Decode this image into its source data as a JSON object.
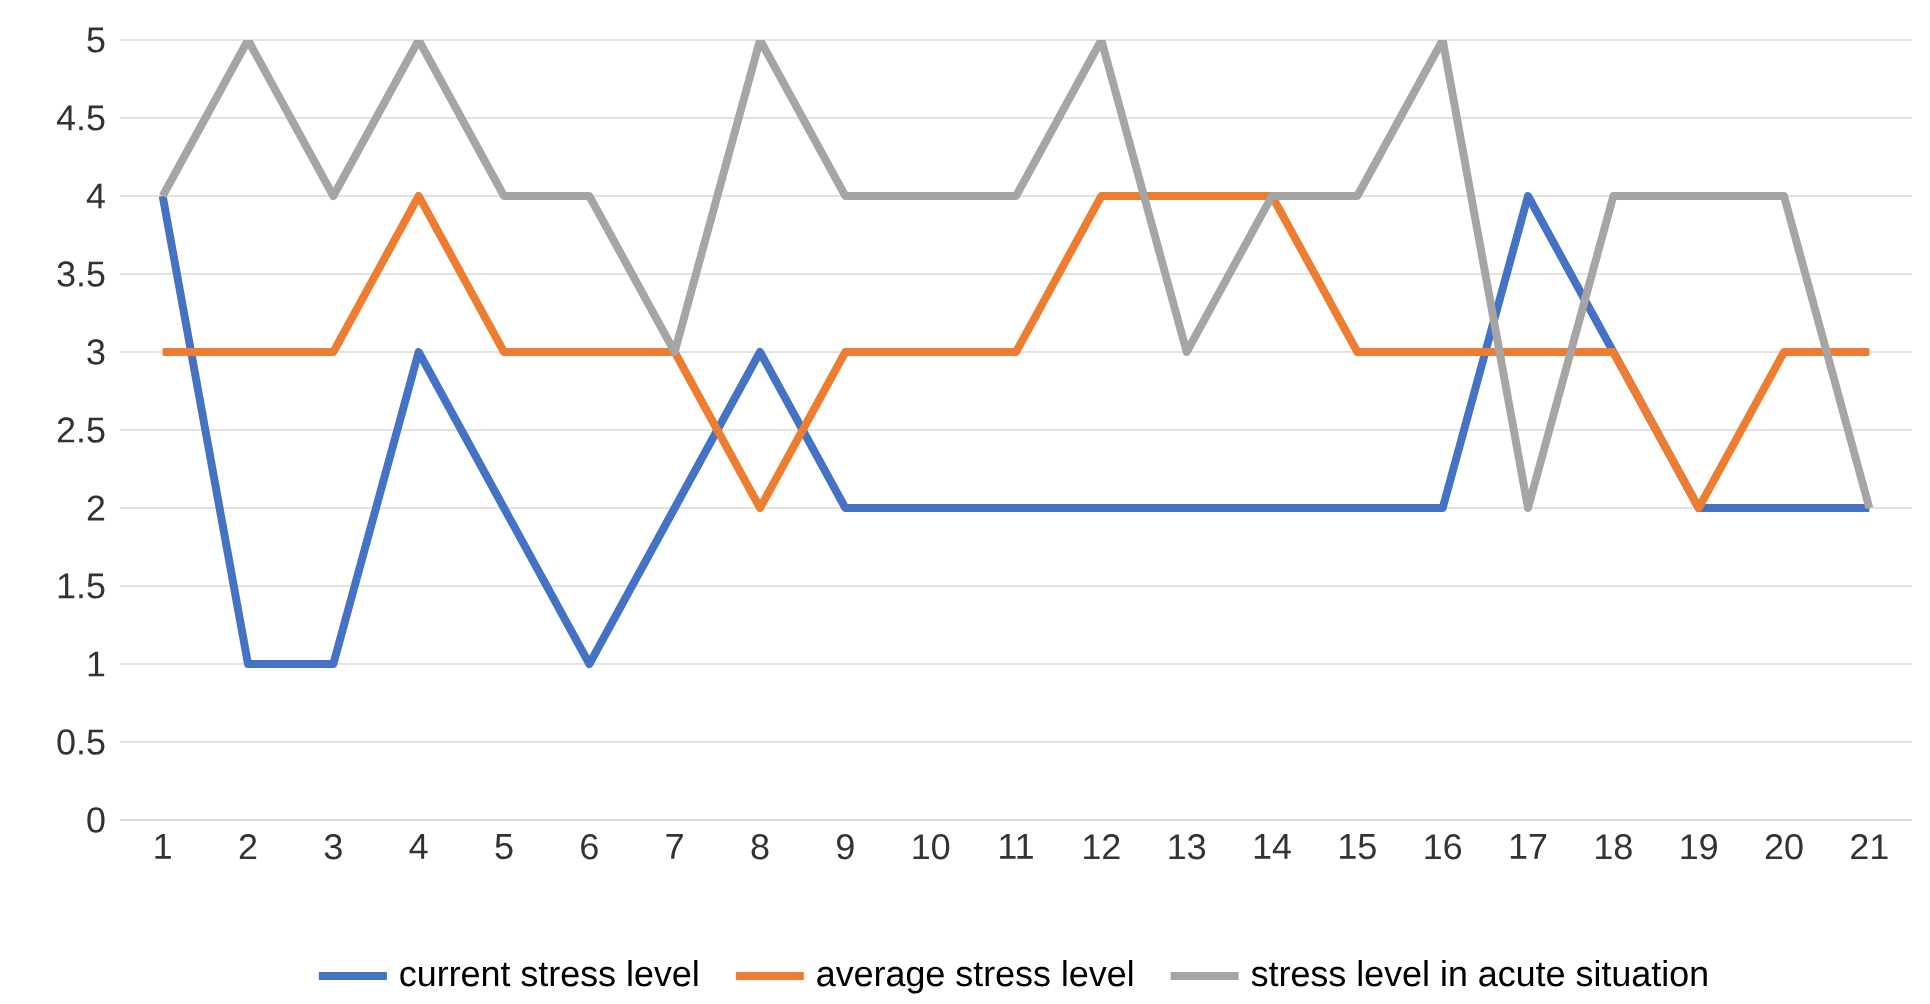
{
  "chart_data": {
    "type": "line",
    "categories": [
      "1",
      "2",
      "3",
      "4",
      "5",
      "6",
      "7",
      "8",
      "9",
      "10",
      "11",
      "12",
      "13",
      "14",
      "15",
      "16",
      "17",
      "18",
      "19",
      "20",
      "21"
    ],
    "series": [
      {
        "name": "current stress level",
        "color": "#4472c4",
        "values": [
          4,
          1,
          1,
          3,
          2,
          1,
          2,
          3,
          2,
          2,
          2,
          2,
          2,
          2,
          2,
          2,
          4,
          3,
          2,
          2,
          2
        ]
      },
      {
        "name": "average stress level",
        "color": "#ed7d31",
        "values": [
          3,
          3,
          3,
          4,
          3,
          3,
          3,
          2,
          3,
          3,
          3,
          4,
          4,
          4,
          3,
          3,
          3,
          3,
          2,
          3,
          3
        ]
      },
      {
        "name": "stress level in acute situation",
        "color": "#a5a5a5",
        "values": [
          4,
          5,
          4,
          5,
          4,
          4,
          3,
          5,
          4,
          4,
          4,
          5,
          3,
          4,
          4,
          5,
          2,
          4,
          4,
          4,
          2
        ]
      }
    ],
    "ylim": [
      0,
      5
    ],
    "yticks": [
      0,
      0.5,
      1,
      1.5,
      2,
      2.5,
      3,
      3.5,
      4,
      4.5,
      5
    ],
    "grid": "y",
    "legend": "bottom",
    "line_style": "solid",
    "marker": "none"
  }
}
